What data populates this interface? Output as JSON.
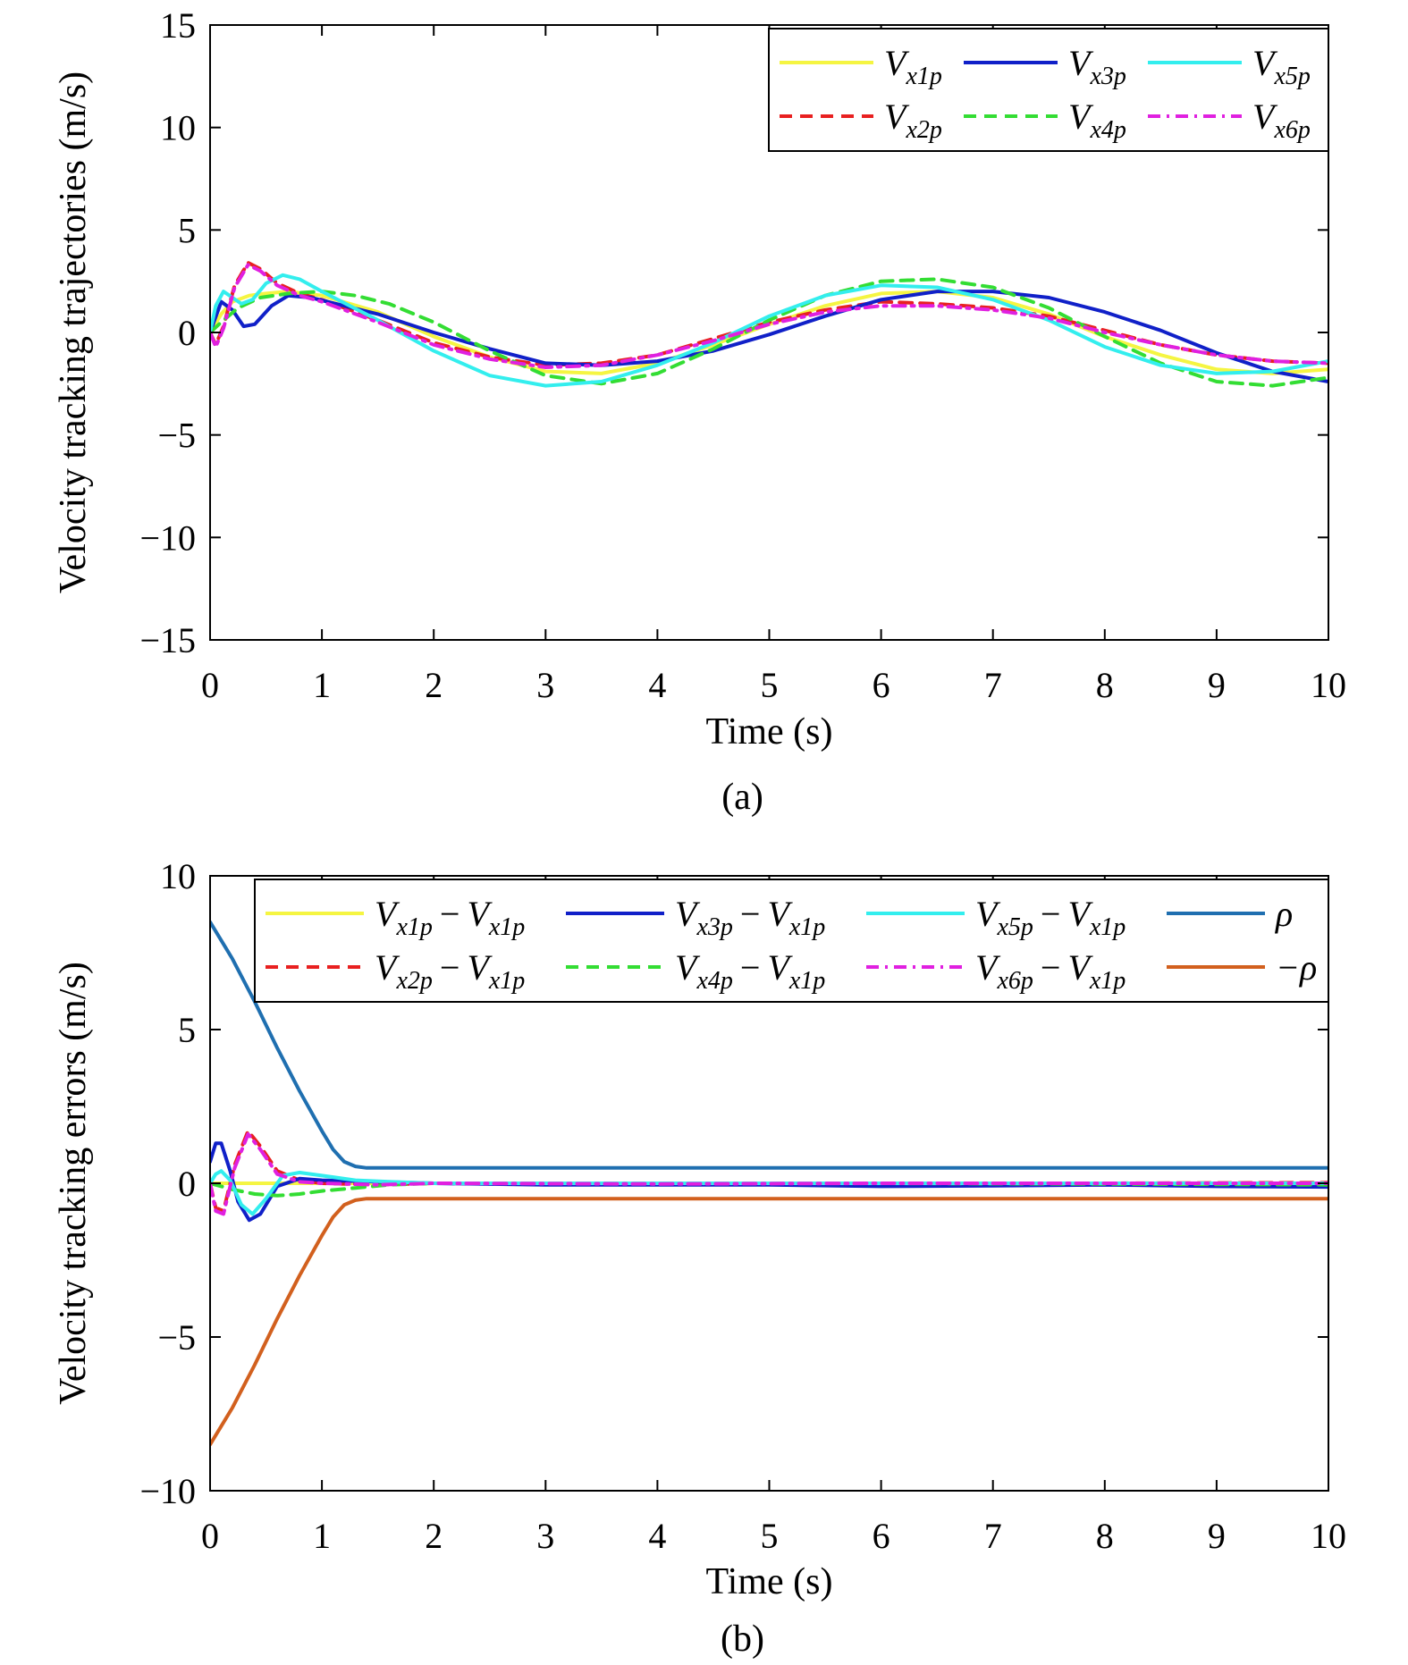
{
  "chart_data": [
    {
      "type": "line",
      "panel_label": "(a)",
      "xlabel": "Time (s)",
      "ylabel": "Velocity tracking trajectories (m/s)",
      "xlim": [
        0,
        10
      ],
      "ylim": [
        -15,
        15
      ],
      "xticks": [
        "0",
        "1",
        "2",
        "3",
        "4",
        "5",
        "6",
        "7",
        "8",
        "9",
        "10"
      ],
      "yticks": [
        "15",
        "10",
        "5",
        "0",
        "−5",
        "−10",
        "−15"
      ],
      "legend_position": "top-right",
      "grid": false,
      "series": [
        {
          "name": "V",
          "sub": "x1p",
          "color": "#f5f542",
          "dash": "solid",
          "x": [
            0,
            0.1,
            0.2,
            0.35,
            0.5,
            0.7,
            1.0,
            1.5,
            2.0,
            2.5,
            3.0,
            3.5,
            4.0,
            4.5,
            5.0,
            5.5,
            6.0,
            6.5,
            7.0,
            7.5,
            8.0,
            8.5,
            9.0,
            9.5,
            10.0
          ],
          "y": [
            0,
            0.9,
            1.5,
            1.8,
            1.9,
            2.0,
            1.8,
            1.0,
            -0.2,
            -1.2,
            -1.9,
            -2.0,
            -1.5,
            -0.6,
            0.4,
            1.3,
            1.9,
            2.0,
            1.7,
            0.9,
            -0.2,
            -1.1,
            -1.8,
            -2.0,
            -1.8
          ]
        },
        {
          "name": "V",
          "sub": "x2p",
          "color": "#e82020",
          "dash": "dashed",
          "x": [
            0,
            0.05,
            0.12,
            0.22,
            0.34,
            0.45,
            0.6,
            0.8,
            1.0,
            1.5,
            2.0,
            2.5,
            3.0,
            3.5,
            4.0,
            4.5,
            5.0,
            5.5,
            6.0,
            6.5,
            7.0,
            7.5,
            8.0,
            8.5,
            9.0,
            9.5,
            10.0
          ],
          "y": [
            0,
            -0.6,
            0.3,
            2.3,
            3.4,
            3.1,
            2.4,
            1.9,
            1.6,
            0.6,
            -0.5,
            -1.2,
            -1.6,
            -1.5,
            -1.1,
            -0.3,
            0.5,
            1.1,
            1.5,
            1.4,
            1.2,
            0.8,
            0.1,
            -0.6,
            -1.1,
            -1.4,
            -1.5
          ]
        },
        {
          "name": "V",
          "sub": "x3p",
          "color": "#1020c8",
          "dash": "solid",
          "x": [
            0,
            0.1,
            0.2,
            0.3,
            0.4,
            0.55,
            0.7,
            0.9,
            1.2,
            1.5,
            2.0,
            2.5,
            3.0,
            3.5,
            4.0,
            4.5,
            5.0,
            5.5,
            6.0,
            6.5,
            7.0,
            7.5,
            8.0,
            8.5,
            9.0,
            9.5,
            10.0
          ],
          "y": [
            0,
            1.5,
            1.1,
            0.3,
            0.4,
            1.3,
            1.8,
            1.7,
            1.3,
            0.9,
            0,
            -0.8,
            -1.5,
            -1.6,
            -1.4,
            -0.9,
            -0.1,
            0.8,
            1.6,
            2.0,
            2.0,
            1.7,
            1.0,
            0.1,
            -1.0,
            -1.9,
            -2.4
          ]
        },
        {
          "name": "V",
          "sub": "x4p",
          "color": "#33dd33",
          "dash": "dashed",
          "x": [
            0,
            0.1,
            0.25,
            0.45,
            0.7,
            1.0,
            1.3,
            1.6,
            2.0,
            2.5,
            3.0,
            3.5,
            4.0,
            4.5,
            5.0,
            5.5,
            6.0,
            6.5,
            7.0,
            7.5,
            8.0,
            8.5,
            9.0,
            9.5,
            10.0
          ],
          "y": [
            0,
            0.5,
            1.2,
            1.7,
            1.9,
            2.0,
            1.8,
            1.4,
            0.5,
            -0.9,
            -2.1,
            -2.5,
            -2.0,
            -0.8,
            0.6,
            1.8,
            2.5,
            2.6,
            2.2,
            1.2,
            -0.2,
            -1.5,
            -2.4,
            -2.6,
            -2.2
          ]
        },
        {
          "name": "V",
          "sub": "x5p",
          "color": "#33eeee",
          "dash": "solid",
          "x": [
            0,
            0.05,
            0.12,
            0.2,
            0.28,
            0.38,
            0.5,
            0.65,
            0.8,
            1.0,
            1.5,
            2.0,
            2.5,
            3.0,
            3.5,
            4.0,
            4.5,
            5.0,
            5.5,
            6.0,
            6.5,
            7.0,
            7.5,
            8.0,
            8.5,
            9.0,
            9.5,
            10.0
          ],
          "y": [
            0,
            1.3,
            2.0,
            1.7,
            1.4,
            1.6,
            2.4,
            2.8,
            2.6,
            2.0,
            0.6,
            -0.9,
            -2.1,
            -2.6,
            -2.4,
            -1.6,
            -0.5,
            0.8,
            1.8,
            2.3,
            2.2,
            1.6,
            0.6,
            -0.7,
            -1.6,
            -2.0,
            -1.9,
            -1.4
          ]
        },
        {
          "name": "V",
          "sub": "x6p",
          "color": "#e020e0",
          "dash": "dashdot",
          "x": [
            0,
            0.05,
            0.12,
            0.22,
            0.34,
            0.45,
            0.6,
            0.8,
            1.0,
            1.5,
            2.0,
            2.5,
            3.0,
            3.5,
            4.0,
            4.5,
            5.0,
            5.5,
            6.0,
            6.5,
            7.0,
            7.5,
            8.0,
            8.5,
            9.0,
            9.5,
            10.0
          ],
          "y": [
            0,
            -0.7,
            0.2,
            2.2,
            3.3,
            3.0,
            2.3,
            1.8,
            1.5,
            0.5,
            -0.6,
            -1.3,
            -1.7,
            -1.6,
            -1.1,
            -0.4,
            0.4,
            1.0,
            1.3,
            1.3,
            1.1,
            0.7,
            0,
            -0.6,
            -1.1,
            -1.4,
            -1.5
          ]
        }
      ]
    },
    {
      "type": "line",
      "panel_label": "(b)",
      "xlabel": "Time (s)",
      "ylabel": "Velocity tracking errors (m/s)",
      "xlim": [
        0,
        10
      ],
      "ylim": [
        -10,
        10
      ],
      "xticks": [
        "0",
        "1",
        "2",
        "3",
        "4",
        "5",
        "6",
        "7",
        "8",
        "9",
        "10"
      ],
      "yticks": [
        "10",
        "5",
        "0",
        "−5",
        "−10"
      ],
      "legend_position": "top-right",
      "grid": false,
      "series": [
        {
          "name": "V",
          "sub": "x1p",
          "minus": "V",
          "minus_sub": "x1p",
          "color": "#f5f542",
          "dash": "solid",
          "x": [
            0,
            10
          ],
          "y": [
            0,
            0
          ]
        },
        {
          "name": "V",
          "sub": "x2p",
          "minus": "V",
          "minus_sub": "x1p",
          "color": "#e82020",
          "dash": "dashed",
          "x": [
            0,
            0.05,
            0.12,
            0.22,
            0.34,
            0.45,
            0.6,
            0.8,
            1.0,
            1.5,
            2.0,
            4.0,
            6.0,
            8.0,
            10.0
          ],
          "y": [
            0,
            -0.8,
            -0.9,
            0.6,
            1.7,
            1.2,
            0.4,
            0.1,
            0,
            -0.05,
            0,
            0,
            -0.02,
            0,
            0.02
          ]
        },
        {
          "name": "V",
          "sub": "x3p",
          "minus": "V",
          "minus_sub": "x1p",
          "color": "#1020c8",
          "dash": "solid",
          "x": [
            0,
            0.05,
            0.1,
            0.18,
            0.25,
            0.35,
            0.45,
            0.6,
            0.8,
            1.0,
            1.5,
            2.0,
            3.0,
            4.0,
            5.0,
            6.0,
            7.0,
            8.0,
            9.0,
            10.0
          ],
          "y": [
            0.7,
            1.3,
            1.3,
            0.4,
            -0.6,
            -1.2,
            -1.0,
            -0.1,
            0.15,
            0.1,
            0.05,
            0,
            -0.05,
            -0.05,
            -0.05,
            -0.1,
            -0.08,
            -0.05,
            -0.1,
            -0.12
          ]
        },
        {
          "name": "V",
          "sub": "x4p",
          "minus": "V",
          "minus_sub": "x1p",
          "color": "#33dd33",
          "dash": "dashed",
          "x": [
            0,
            0.2,
            0.4,
            0.6,
            0.8,
            1.0,
            1.3,
            1.6,
            2.0,
            3.0,
            4.0,
            6.0,
            8.0,
            10.0
          ],
          "y": [
            0,
            -0.2,
            -0.35,
            -0.4,
            -0.35,
            -0.25,
            -0.15,
            -0.05,
            0,
            0,
            0,
            0,
            -0.02,
            -0.05
          ]
        },
        {
          "name": "V",
          "sub": "x5p",
          "minus": "V",
          "minus_sub": "x1p",
          "color": "#33eeee",
          "dash": "solid",
          "x": [
            0,
            0.05,
            0.1,
            0.18,
            0.28,
            0.38,
            0.5,
            0.65,
            0.8,
            1.0,
            1.3,
            1.6,
            2.0,
            3.0,
            5.0,
            7.0,
            10.0
          ],
          "y": [
            0,
            0.3,
            0.4,
            0.1,
            -0.7,
            -1.0,
            -0.5,
            0.25,
            0.35,
            0.25,
            0.1,
            0.05,
            0,
            0,
            0,
            0,
            0
          ]
        },
        {
          "name": "V",
          "sub": "x6p",
          "minus": "V",
          "minus_sub": "x1p",
          "color": "#e020e0",
          "dash": "dashdot",
          "x": [
            0,
            0.05,
            0.12,
            0.22,
            0.34,
            0.45,
            0.6,
            0.8,
            1.0,
            1.5,
            2.0,
            4.0,
            6.0,
            8.0,
            10.0
          ],
          "y": [
            0,
            -0.9,
            -1.0,
            0.5,
            1.6,
            1.1,
            0.3,
            0.05,
            0,
            -0.05,
            0,
            -0.02,
            0,
            0,
            0
          ]
        },
        {
          "name": "ρ",
          "color": "#1f6fb0",
          "dash": "solid",
          "x": [
            0,
            0.2,
            0.4,
            0.6,
            0.8,
            1.0,
            1.1,
            1.2,
            1.3,
            1.4,
            1.6,
            2.0,
            4.0,
            6.0,
            8.0,
            10.0
          ],
          "y": [
            8.5,
            7.3,
            5.9,
            4.4,
            3.0,
            1.7,
            1.1,
            0.7,
            0.55,
            0.5,
            0.5,
            0.5,
            0.5,
            0.5,
            0.5,
            0.5
          ]
        },
        {
          "name": "−ρ",
          "color": "#d2601e",
          "dash": "solid",
          "x": [
            0,
            0.2,
            0.4,
            0.6,
            0.8,
            1.0,
            1.1,
            1.2,
            1.3,
            1.4,
            1.6,
            2.0,
            4.0,
            6.0,
            8.0,
            10.0
          ],
          "y": [
            -8.5,
            -7.3,
            -5.9,
            -4.4,
            -3.0,
            -1.7,
            -1.1,
            -0.7,
            -0.55,
            -0.5,
            -0.5,
            -0.5,
            -0.5,
            -0.5,
            -0.5,
            -0.5
          ]
        }
      ]
    }
  ]
}
